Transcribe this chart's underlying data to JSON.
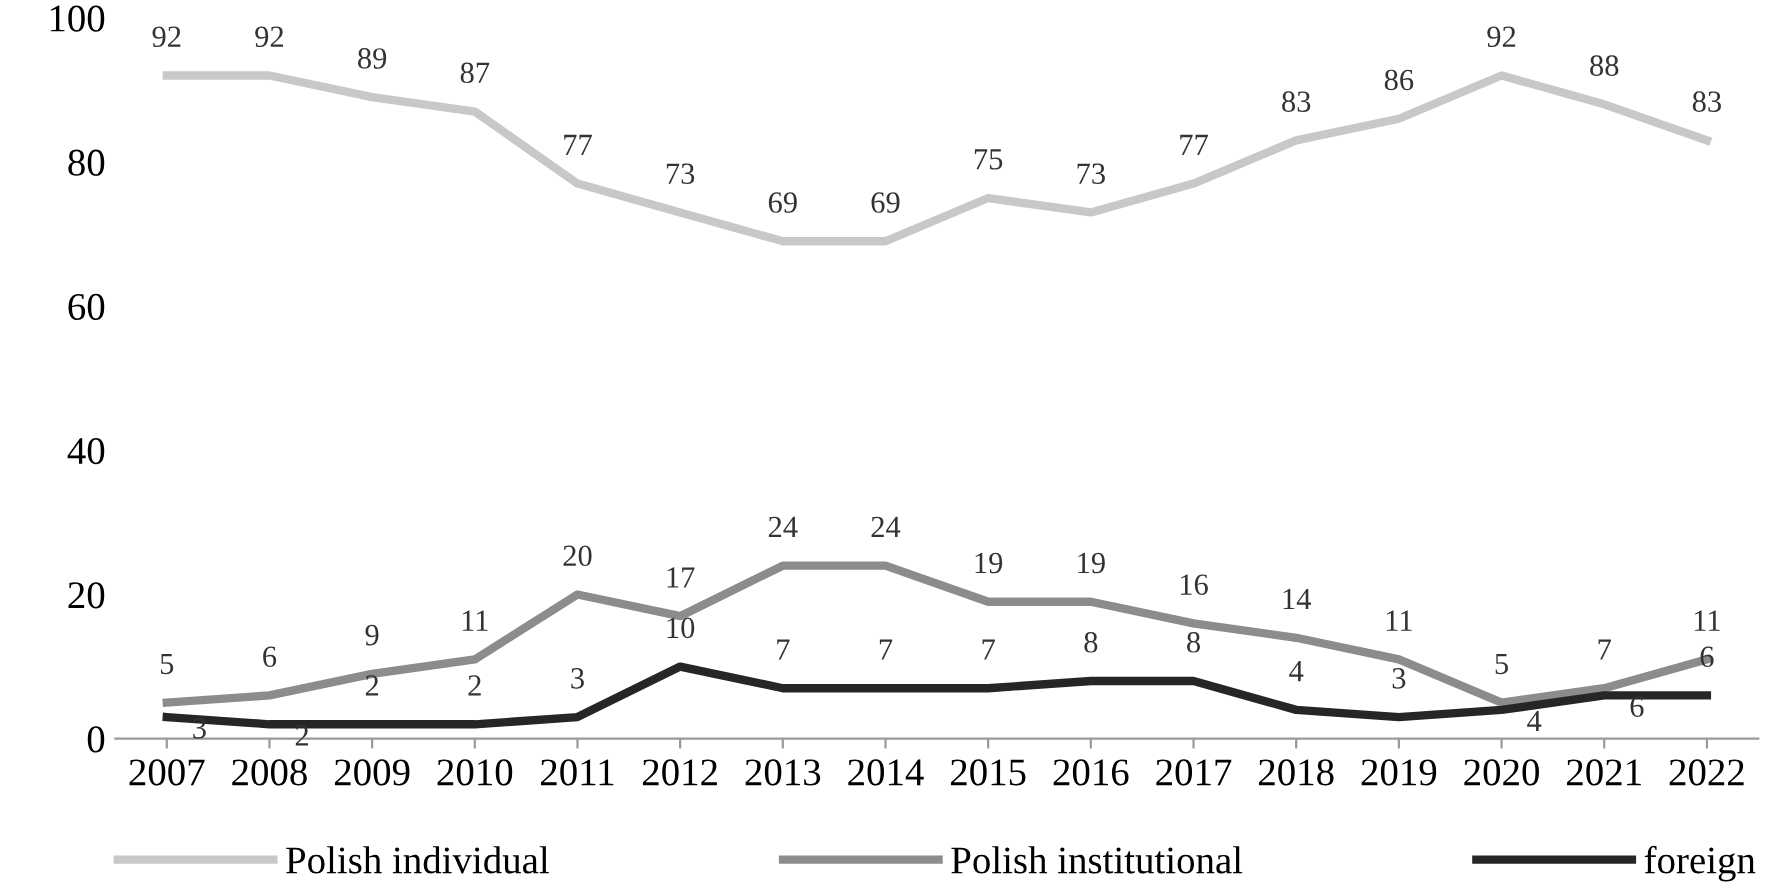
{
  "chart_data": {
    "type": "line",
    "categories": [
      "2007",
      "2008",
      "2009",
      "2010",
      "2011",
      "2012",
      "2013",
      "2014",
      "2015",
      "2016",
      "2017",
      "2018",
      "2019",
      "2020",
      "2021",
      "2022"
    ],
    "series": [
      {
        "name": "Polish individual",
        "color": "#c8c8c8",
        "values": [
          92,
          92,
          89,
          87,
          77,
          73,
          69,
          69,
          75,
          73,
          77,
          83,
          86,
          92,
          88,
          83
        ]
      },
      {
        "name": "Polish institutional",
        "color": "#8c8c8c",
        "values": [
          5,
          6,
          9,
          11,
          20,
          17,
          24,
          24,
          19,
          19,
          16,
          14,
          11,
          5,
          7,
          11
        ]
      },
      {
        "name": "foreign",
        "color": "#262626",
        "values": [
          3,
          2,
          2,
          2,
          3,
          10,
          7,
          7,
          7,
          8,
          8,
          4,
          3,
          4,
          6,
          6
        ]
      }
    ],
    "ylim": [
      0,
      100
    ],
    "yticks": [
      0,
      20,
      40,
      60,
      80,
      100
    ],
    "grid": false,
    "legend": "bottom",
    "data_labels": true,
    "marker": "none",
    "line_style": "solid"
  }
}
